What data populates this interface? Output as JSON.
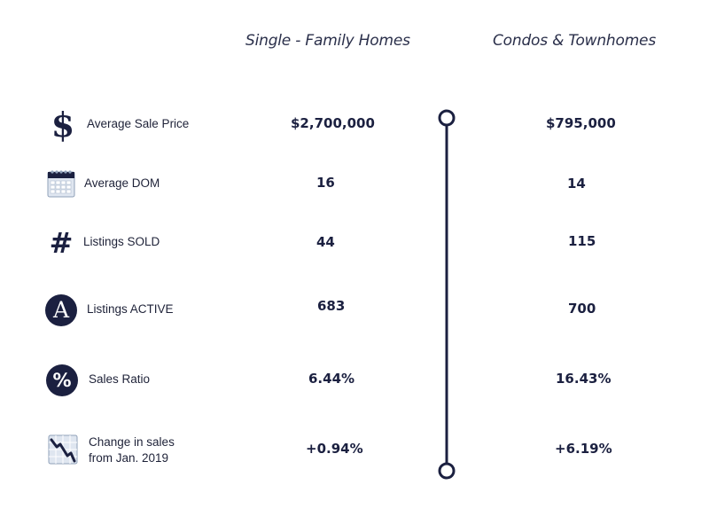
{
  "headers": {
    "single_family": "Single - Family Homes",
    "condos": "Condos & Townhomes"
  },
  "rows": [
    {
      "label": "Average Sale Price",
      "label_line2": "",
      "icon": "dollar-sign-icon",
      "single_family": "$2,700,000",
      "condos": "$795,000"
    },
    {
      "label": "Average DOM",
      "label_line2": "",
      "icon": "calendar-icon",
      "single_family": "16",
      "condos": "14"
    },
    {
      "label": "Listings SOLD",
      "label_line2": "",
      "icon": "hash-icon",
      "single_family": "44",
      "condos": "115"
    },
    {
      "label": "Listings ACTIVE",
      "label_line2": "",
      "icon": "letter-a-icon",
      "single_family": "683",
      "condos": "700"
    },
    {
      "label": "Sales Ratio",
      "label_line2": "",
      "icon": "percent-icon",
      "single_family": "6.44%",
      "condos": "16.43%"
    },
    {
      "label": "Change in sales",
      "label_line2": "from Jan. 2019",
      "icon": "declining-chart-icon",
      "single_family": "+0.94%",
      "condos": "+6.19%"
    }
  ],
  "icon_glyphs": {
    "dollar": "$",
    "hash": "#",
    "letter_a": "A",
    "percent": "%"
  },
  "colors": {
    "navy": "#1b2040",
    "icon_light": "#c9d3e2",
    "icon_light_stroke": "#8fa0b8",
    "text": "#1e2238",
    "header_text": "#2a2f4a"
  }
}
